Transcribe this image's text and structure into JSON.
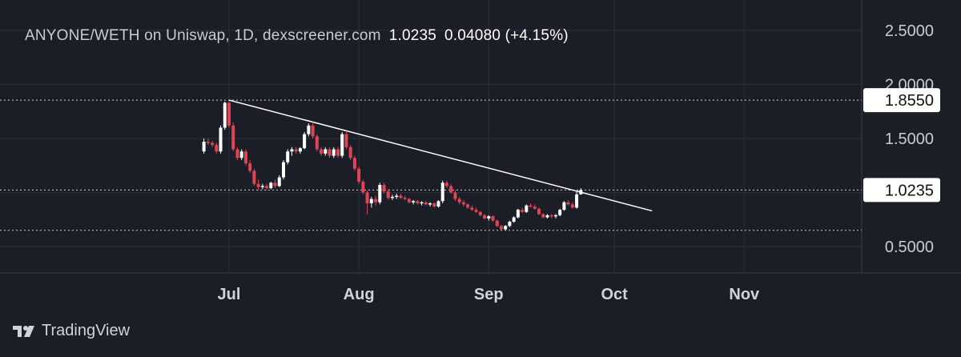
{
  "header": {
    "symbol_line": "ANYONE/WETH on Uniswap, 1D, dexscreener.com",
    "last_price": "1.0235",
    "change": "0.04080 (+4.15%)"
  },
  "brand": {
    "name": "TradingView",
    "icon": "tradingview-logo-icon"
  },
  "colors": {
    "background": "#1b1d27",
    "up": "#ffffff",
    "down": "#e04553",
    "grid": "#2c2f3b",
    "trendline": "#ffffff"
  },
  "chart_data": {
    "type": "candlestick",
    "title": "",
    "xlabel": "",
    "ylabel": "",
    "ylim": [
      0.25,
      2.65
    ],
    "yticks": [
      "2.5000",
      "2.0000",
      "1.5000",
      "1.0235",
      "0.5000"
    ],
    "xticks": [
      "Jul",
      "Aug",
      "Sep",
      "Oct",
      "Nov"
    ],
    "price_tags": [
      "1.8550",
      "1.0235"
    ],
    "horizontal_lines": [
      1.855,
      1.0235,
      0.65
    ],
    "trendline": {
      "from": [
        "Jul 1",
        1.855
      ],
      "to": [
        "Oct 10",
        0.83
      ]
    },
    "grid": true,
    "candles": [
      {
        "date": "Jun 25",
        "o": 1.38,
        "h": 1.5,
        "l": 1.36,
        "c": 1.47
      },
      {
        "date": "Jun 26",
        "o": 1.47,
        "h": 1.5,
        "l": 1.44,
        "c": 1.46
      },
      {
        "date": "Jun 27",
        "o": 1.46,
        "h": 1.48,
        "l": 1.42,
        "c": 1.44
      },
      {
        "date": "Jun 28",
        "o": 1.44,
        "h": 1.46,
        "l": 1.36,
        "c": 1.38
      },
      {
        "date": "Jun 29",
        "o": 1.38,
        "h": 1.62,
        "l": 1.36,
        "c": 1.6
      },
      {
        "date": "Jun 30",
        "o": 1.6,
        "h": 1.84,
        "l": 1.58,
        "c": 1.83
      },
      {
        "date": "Jul 1",
        "o": 1.83,
        "h": 1.855,
        "l": 1.6,
        "c": 1.62
      },
      {
        "date": "Jul 2",
        "o": 1.62,
        "h": 1.65,
        "l": 1.38,
        "c": 1.4
      },
      {
        "date": "Jul 3",
        "o": 1.4,
        "h": 1.42,
        "l": 1.3,
        "c": 1.32
      },
      {
        "date": "Jul 4",
        "o": 1.32,
        "h": 1.4,
        "l": 1.3,
        "c": 1.38
      },
      {
        "date": "Jul 5",
        "o": 1.38,
        "h": 1.4,
        "l": 1.25,
        "c": 1.27
      },
      {
        "date": "Jul 6",
        "o": 1.27,
        "h": 1.3,
        "l": 1.18,
        "c": 1.2
      },
      {
        "date": "Jul 7",
        "o": 1.2,
        "h": 1.22,
        "l": 1.06,
        "c": 1.08
      },
      {
        "date": "Jul 8",
        "o": 1.08,
        "h": 1.12,
        "l": 1.02,
        "c": 1.05
      },
      {
        "date": "Jul 9",
        "o": 1.05,
        "h": 1.08,
        "l": 1.03,
        "c": 1.06
      },
      {
        "date": "Jul 10",
        "o": 1.06,
        "h": 1.08,
        "l": 1.02,
        "c": 1.04
      },
      {
        "date": "Jul 11",
        "o": 1.04,
        "h": 1.1,
        "l": 1.03,
        "c": 1.09
      },
      {
        "date": "Jul 12",
        "o": 1.09,
        "h": 1.12,
        "l": 1.04,
        "c": 1.06
      },
      {
        "date": "Jul 13",
        "o": 1.06,
        "h": 1.16,
        "l": 1.05,
        "c": 1.14
      },
      {
        "date": "Jul 14",
        "o": 1.14,
        "h": 1.3,
        "l": 1.12,
        "c": 1.28
      },
      {
        "date": "Jul 15",
        "o": 1.28,
        "h": 1.4,
        "l": 1.26,
        "c": 1.38
      },
      {
        "date": "Jul 16",
        "o": 1.38,
        "h": 1.42,
        "l": 1.34,
        "c": 1.4
      },
      {
        "date": "Jul 17",
        "o": 1.4,
        "h": 1.42,
        "l": 1.36,
        "c": 1.38
      },
      {
        "date": "Jul 18",
        "o": 1.38,
        "h": 1.42,
        "l": 1.36,
        "c": 1.41
      },
      {
        "date": "Jul 19",
        "o": 1.41,
        "h": 1.56,
        "l": 1.4,
        "c": 1.54
      },
      {
        "date": "Jul 20",
        "o": 1.54,
        "h": 1.64,
        "l": 1.52,
        "c": 1.62
      },
      {
        "date": "Jul 21",
        "o": 1.62,
        "h": 1.64,
        "l": 1.5,
        "c": 1.52
      },
      {
        "date": "Jul 22",
        "o": 1.52,
        "h": 1.54,
        "l": 1.38,
        "c": 1.4
      },
      {
        "date": "Jul 23",
        "o": 1.4,
        "h": 1.42,
        "l": 1.34,
        "c": 1.36
      },
      {
        "date": "Jul 24",
        "o": 1.36,
        "h": 1.42,
        "l": 1.34,
        "c": 1.4
      },
      {
        "date": "Jul 25",
        "o": 1.4,
        "h": 1.42,
        "l": 1.32,
        "c": 1.34
      },
      {
        "date": "Jul 26",
        "o": 1.34,
        "h": 1.42,
        "l": 1.32,
        "c": 1.4
      },
      {
        "date": "Jul 27",
        "o": 1.4,
        "h": 1.42,
        "l": 1.32,
        "c": 1.34
      },
      {
        "date": "Jul 28",
        "o": 1.34,
        "h": 1.56,
        "l": 1.32,
        "c": 1.54
      },
      {
        "date": "Jul 29",
        "o": 1.54,
        "h": 1.56,
        "l": 1.4,
        "c": 1.42
      },
      {
        "date": "Jul 30",
        "o": 1.42,
        "h": 1.44,
        "l": 1.3,
        "c": 1.32
      },
      {
        "date": "Jul 31",
        "o": 1.32,
        "h": 1.34,
        "l": 1.2,
        "c": 1.22
      },
      {
        "date": "Aug 1",
        "o": 1.22,
        "h": 1.24,
        "l": 1.08,
        "c": 1.1
      },
      {
        "date": "Aug 2",
        "o": 1.1,
        "h": 1.12,
        "l": 0.98,
        "c": 1.0
      },
      {
        "date": "Aug 3",
        "o": 1.0,
        "h": 1.02,
        "l": 0.8,
        "c": 0.9
      },
      {
        "date": "Aug 4",
        "o": 0.9,
        "h": 0.96,
        "l": 0.86,
        "c": 0.94
      },
      {
        "date": "Aug 5",
        "o": 0.94,
        "h": 0.97,
        "l": 0.88,
        "c": 0.91
      },
      {
        "date": "Aug 6",
        "o": 0.91,
        "h": 1.09,
        "l": 0.89,
        "c": 1.07
      },
      {
        "date": "Aug 7",
        "o": 1.07,
        "h": 1.09,
        "l": 0.99,
        "c": 1.01
      },
      {
        "date": "Aug 8",
        "o": 1.01,
        "h": 1.03,
        "l": 0.93,
        "c": 0.95
      },
      {
        "date": "Aug 9",
        "o": 0.95,
        "h": 0.98,
        "l": 0.93,
        "c": 0.96
      },
      {
        "date": "Aug 10",
        "o": 0.96,
        "h": 0.99,
        "l": 0.94,
        "c": 0.97
      },
      {
        "date": "Aug 11",
        "o": 0.97,
        "h": 0.99,
        "l": 0.94,
        "c": 0.95
      },
      {
        "date": "Aug 12",
        "o": 0.95,
        "h": 0.97,
        "l": 0.93,
        "c": 0.94
      },
      {
        "date": "Aug 13",
        "o": 0.94,
        "h": 0.95,
        "l": 0.9,
        "c": 0.91
      },
      {
        "date": "Aug 14",
        "o": 0.91,
        "h": 0.93,
        "l": 0.89,
        "c": 0.92
      },
      {
        "date": "Aug 15",
        "o": 0.92,
        "h": 0.93,
        "l": 0.89,
        "c": 0.9
      },
      {
        "date": "Aug 16",
        "o": 0.9,
        "h": 0.92,
        "l": 0.88,
        "c": 0.91
      },
      {
        "date": "Aug 17",
        "o": 0.91,
        "h": 0.92,
        "l": 0.88,
        "c": 0.89
      },
      {
        "date": "Aug 18",
        "o": 0.89,
        "h": 0.91,
        "l": 0.87,
        "c": 0.9
      },
      {
        "date": "Aug 19",
        "o": 0.9,
        "h": 0.91,
        "l": 0.86,
        "c": 0.87
      },
      {
        "date": "Aug 20",
        "o": 0.87,
        "h": 0.93,
        "l": 0.86,
        "c": 0.92
      },
      {
        "date": "Aug 21",
        "o": 0.92,
        "h": 1.11,
        "l": 0.9,
        "c": 1.09
      },
      {
        "date": "Aug 22",
        "o": 1.09,
        "h": 1.11,
        "l": 1.04,
        "c": 1.06
      },
      {
        "date": "Aug 23",
        "o": 1.06,
        "h": 1.08,
        "l": 0.99,
        "c": 1.0
      },
      {
        "date": "Aug 24",
        "o": 1.0,
        "h": 1.02,
        "l": 0.92,
        "c": 0.94
      },
      {
        "date": "Aug 25",
        "o": 0.94,
        "h": 0.96,
        "l": 0.89,
        "c": 0.91
      },
      {
        "date": "Aug 26",
        "o": 0.91,
        "h": 0.93,
        "l": 0.87,
        "c": 0.89
      },
      {
        "date": "Aug 27",
        "o": 0.89,
        "h": 0.9,
        "l": 0.85,
        "c": 0.86
      },
      {
        "date": "Aug 28",
        "o": 0.86,
        "h": 0.88,
        "l": 0.83,
        "c": 0.84
      },
      {
        "date": "Aug 29",
        "o": 0.84,
        "h": 0.86,
        "l": 0.81,
        "c": 0.82
      },
      {
        "date": "Aug 30",
        "o": 0.82,
        "h": 0.83,
        "l": 0.78,
        "c": 0.79
      },
      {
        "date": "Aug 31",
        "o": 0.79,
        "h": 0.8,
        "l": 0.75,
        "c": 0.76
      },
      {
        "date": "Sep 1",
        "o": 0.76,
        "h": 0.79,
        "l": 0.74,
        "c": 0.78
      },
      {
        "date": "Sep 2",
        "o": 0.78,
        "h": 0.79,
        "l": 0.73,
        "c": 0.74
      },
      {
        "date": "Sep 3",
        "o": 0.74,
        "h": 0.75,
        "l": 0.68,
        "c": 0.69
      },
      {
        "date": "Sep 4",
        "o": 0.69,
        "h": 0.7,
        "l": 0.65,
        "c": 0.66
      },
      {
        "date": "Sep 5",
        "o": 0.66,
        "h": 0.7,
        "l": 0.65,
        "c": 0.69
      },
      {
        "date": "Sep 6",
        "o": 0.69,
        "h": 0.74,
        "l": 0.68,
        "c": 0.73
      },
      {
        "date": "Sep 7",
        "o": 0.73,
        "h": 0.78,
        "l": 0.72,
        "c": 0.77
      },
      {
        "date": "Sep 8",
        "o": 0.77,
        "h": 0.85,
        "l": 0.76,
        "c": 0.84
      },
      {
        "date": "Sep 9",
        "o": 0.84,
        "h": 0.86,
        "l": 0.81,
        "c": 0.82
      },
      {
        "date": "Sep 10",
        "o": 0.82,
        "h": 0.89,
        "l": 0.81,
        "c": 0.88
      },
      {
        "date": "Sep 11",
        "o": 0.88,
        "h": 0.9,
        "l": 0.86,
        "c": 0.87
      },
      {
        "date": "Sep 12",
        "o": 0.87,
        "h": 0.89,
        "l": 0.84,
        "c": 0.85
      },
      {
        "date": "Sep 13",
        "o": 0.85,
        "h": 0.86,
        "l": 0.79,
        "c": 0.8
      },
      {
        "date": "Sep 14",
        "o": 0.8,
        "h": 0.81,
        "l": 0.76,
        "c": 0.77
      },
      {
        "date": "Sep 15",
        "o": 0.77,
        "h": 0.8,
        "l": 0.76,
        "c": 0.79
      },
      {
        "date": "Sep 16",
        "o": 0.79,
        "h": 0.8,
        "l": 0.76,
        "c": 0.78
      },
      {
        "date": "Sep 17",
        "o": 0.78,
        "h": 0.8,
        "l": 0.76,
        "c": 0.79
      },
      {
        "date": "Sep 18",
        "o": 0.79,
        "h": 0.85,
        "l": 0.78,
        "c": 0.84
      },
      {
        "date": "Sep 19",
        "o": 0.84,
        "h": 0.92,
        "l": 0.83,
        "c": 0.91
      },
      {
        "date": "Sep 20",
        "o": 0.91,
        "h": 0.93,
        "l": 0.88,
        "c": 0.89
      },
      {
        "date": "Sep 21",
        "o": 0.89,
        "h": 0.91,
        "l": 0.85,
        "c": 0.86
      },
      {
        "date": "Sep 22",
        "o": 0.86,
        "h": 1.01,
        "l": 0.85,
        "c": 0.9827
      },
      {
        "date": "Sep 23",
        "o": 0.9827,
        "h": 1.04,
        "l": 0.98,
        "c": 1.0235
      }
    ]
  }
}
